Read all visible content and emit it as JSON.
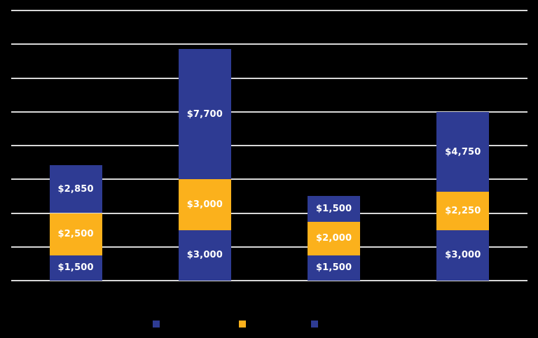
{
  "chart_data": {
    "type": "bar",
    "stacked": true,
    "title": "",
    "categories": [
      "",
      "",
      "",
      ""
    ],
    "series": [
      {
        "name": "",
        "color": "#2E3B93",
        "values": [
          1500,
          3000,
          1500,
          3000
        ],
        "labels": [
          "$1,500",
          "$3,000",
          "$1,500",
          "$3,000"
        ]
      },
      {
        "name": "",
        "color": "#FBB11C",
        "values": [
          2500,
          3000,
          2000,
          2250
        ],
        "labels": [
          "$2,500",
          "$3,000",
          "$2,000",
          "$2,250"
        ]
      },
      {
        "name": "",
        "color": "#2E3B93",
        "values": [
          2850,
          7700,
          1500,
          4750
        ],
        "labels": [
          "$2,850",
          "$7,700",
          "$1,500",
          "$4,750"
        ]
      }
    ],
    "ylim": [
      0,
      16000
    ],
    "y_step": 2000,
    "grid": true,
    "gridline_color": "#D8D8D8",
    "background_color": "#000000",
    "data_label_color": "#FFFFFF",
    "legend_position": "bottom",
    "legend": [
      {
        "label": "",
        "swatch_color": "#2E3B93"
      },
      {
        "label": "",
        "swatch_color": "#FBB11C"
      },
      {
        "label": "",
        "swatch_color": "#2E3B93"
      }
    ]
  }
}
